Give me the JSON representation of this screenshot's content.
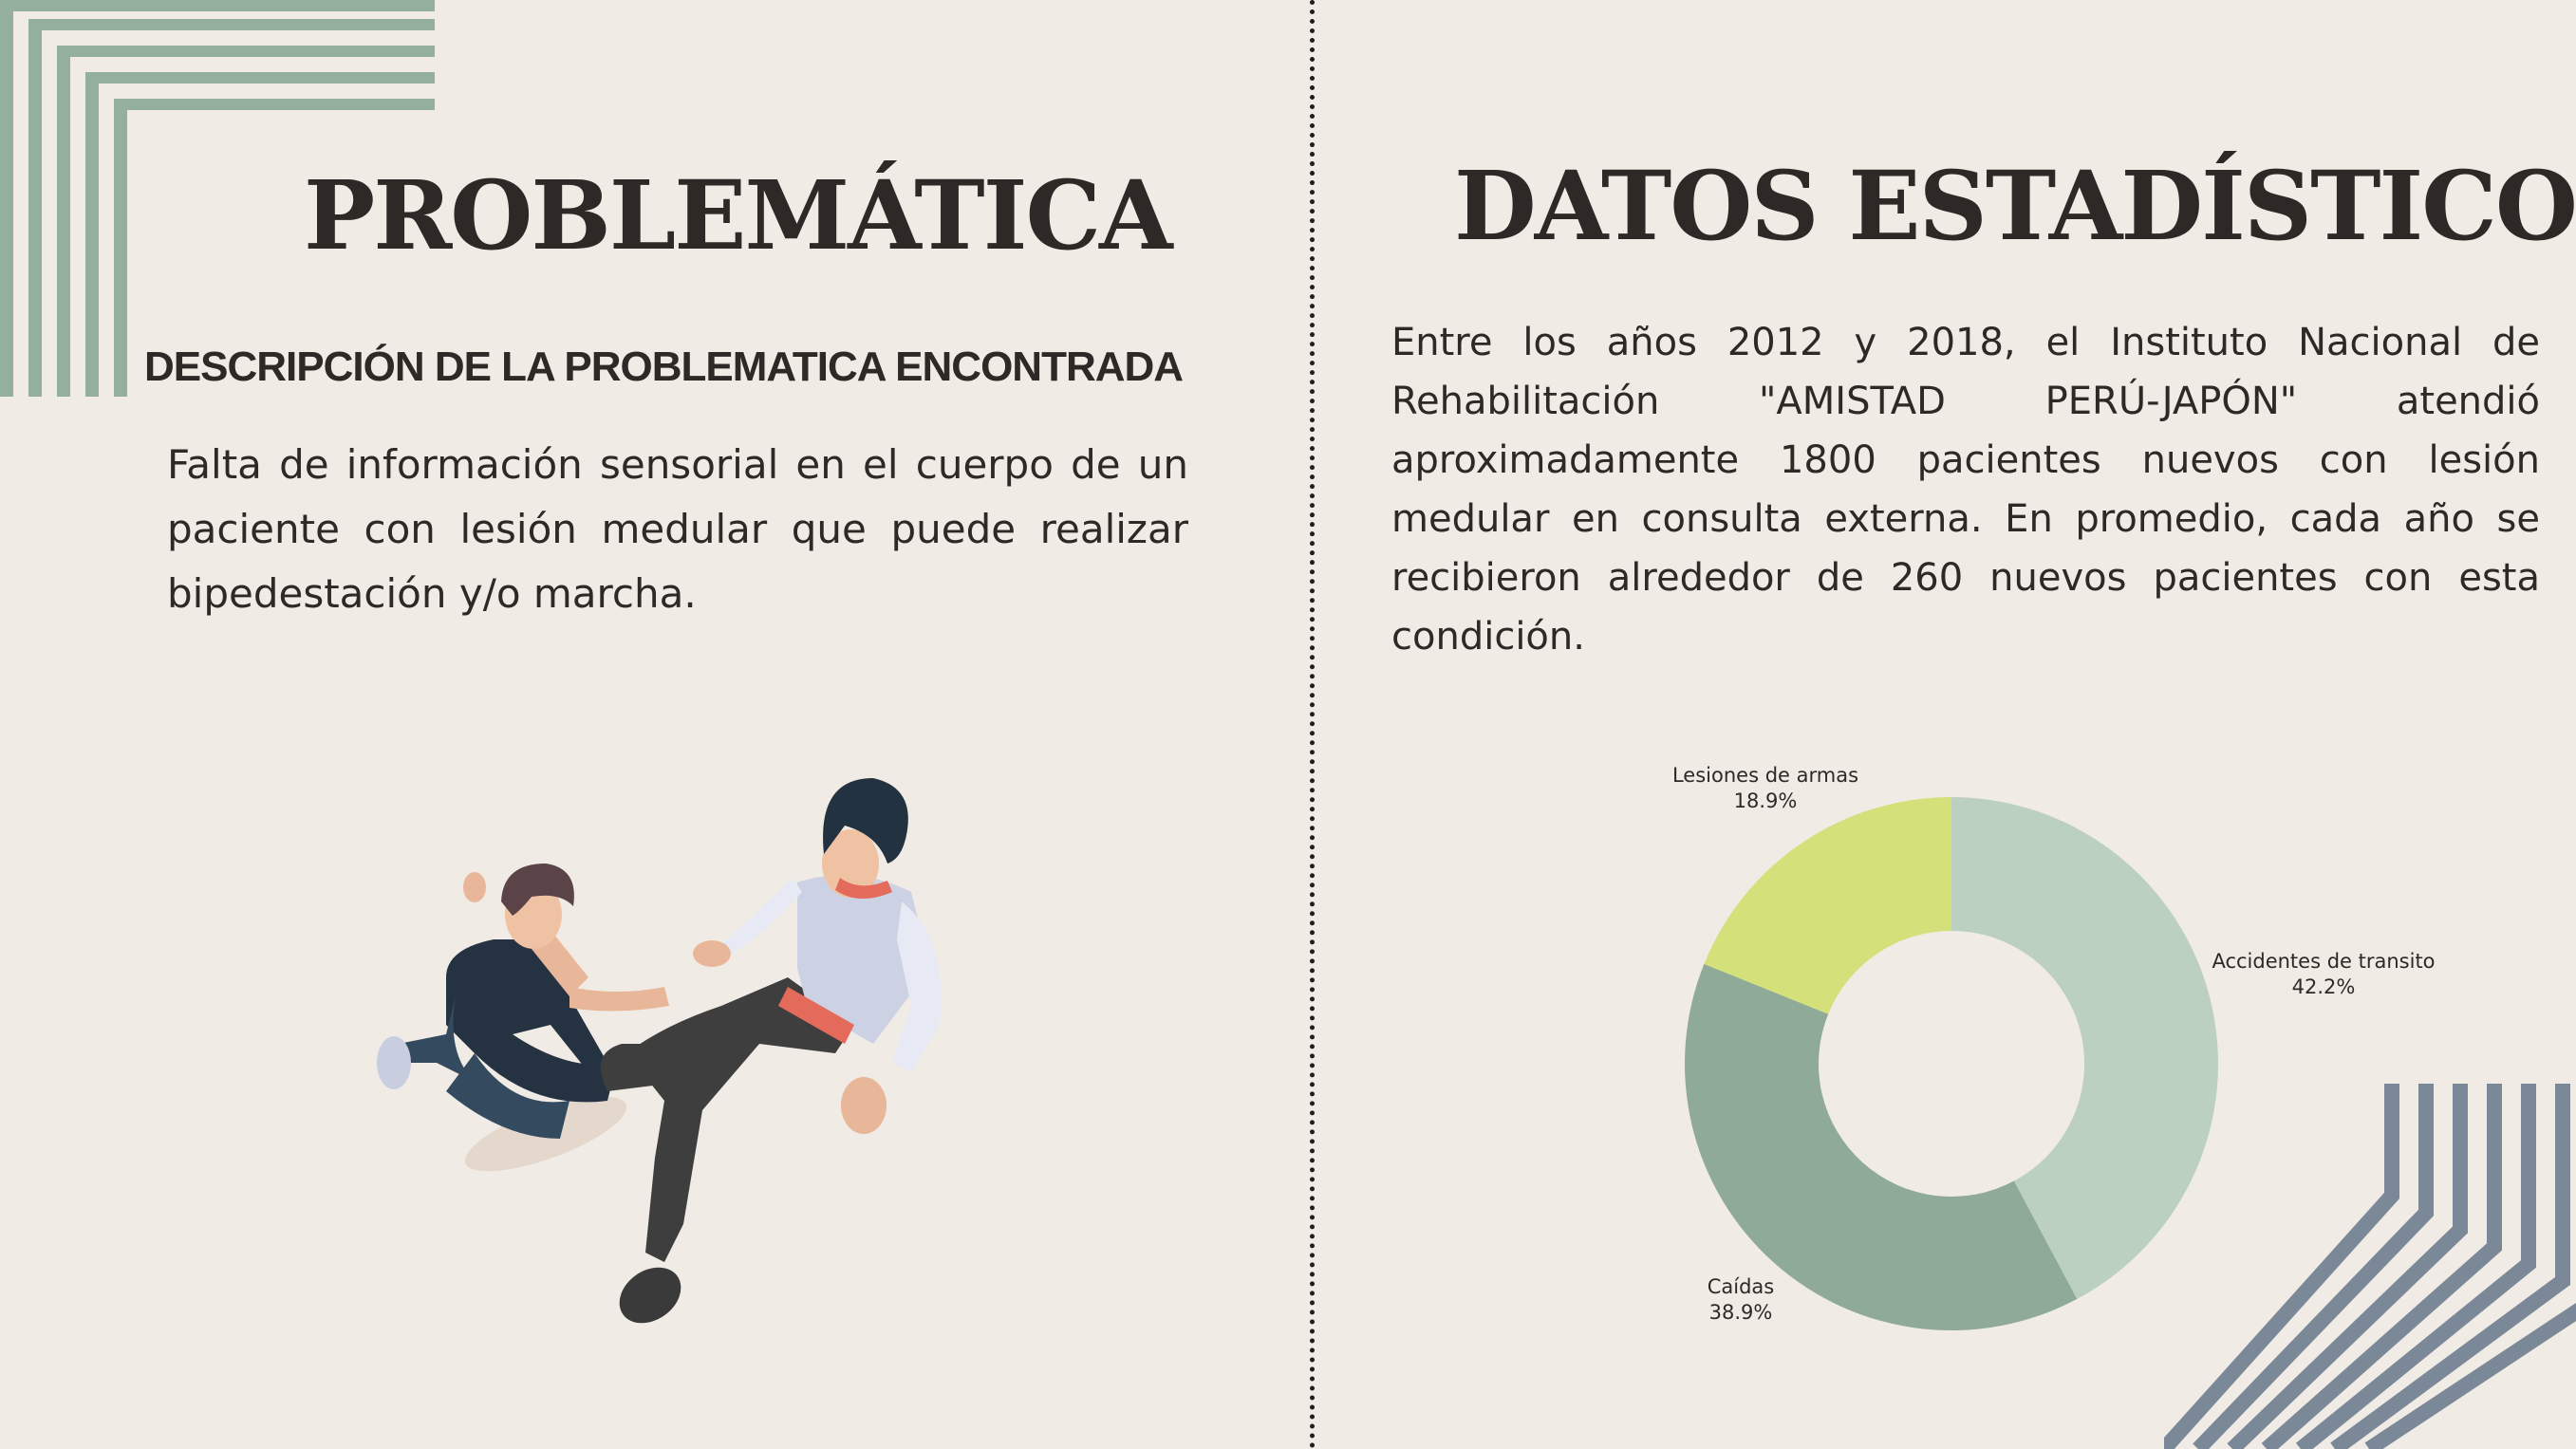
{
  "left": {
    "title": "PROBLEMÁTICA",
    "subtitle": "DESCRIPCIÓN DE LA PROBLEMATICA ENCONTRADA",
    "description": "Falta de información sensorial en el cuerpo de un paciente con lesión medular que puede realizar bipedestación y/o marcha."
  },
  "right": {
    "title": "DATOS ESTADÍSTICOS",
    "text": "Entre los años 2012 y 2018, el Instituto Nacional de Rehabilitación \"AMISTAD PERÚ-JAPÓN\" atendió aproximadamente 1800 pacientes nuevos con lesión medular en consulta externa. En promedio, cada año se recibieron alrededor de 260 nuevos pacientes con esta condición."
  },
  "chart_data": {
    "type": "pie",
    "variant": "donut",
    "categories": [
      "Accidentes de transito",
      "Caídas",
      "Lesiones de armas"
    ],
    "values": [
      42.2,
      38.9,
      18.9
    ],
    "value_labels": [
      "42.2%",
      "38.9%",
      "18.9%"
    ],
    "colors": [
      "#bcd0c2",
      "#8faa97",
      "#d4e07a"
    ]
  },
  "colors": {
    "background": "#f1ebe5",
    "accent_green": "#94b09c",
    "accent_slate": "#7b8898",
    "text": "#2e2826"
  },
  "illustration": "therapist-helping-patient"
}
